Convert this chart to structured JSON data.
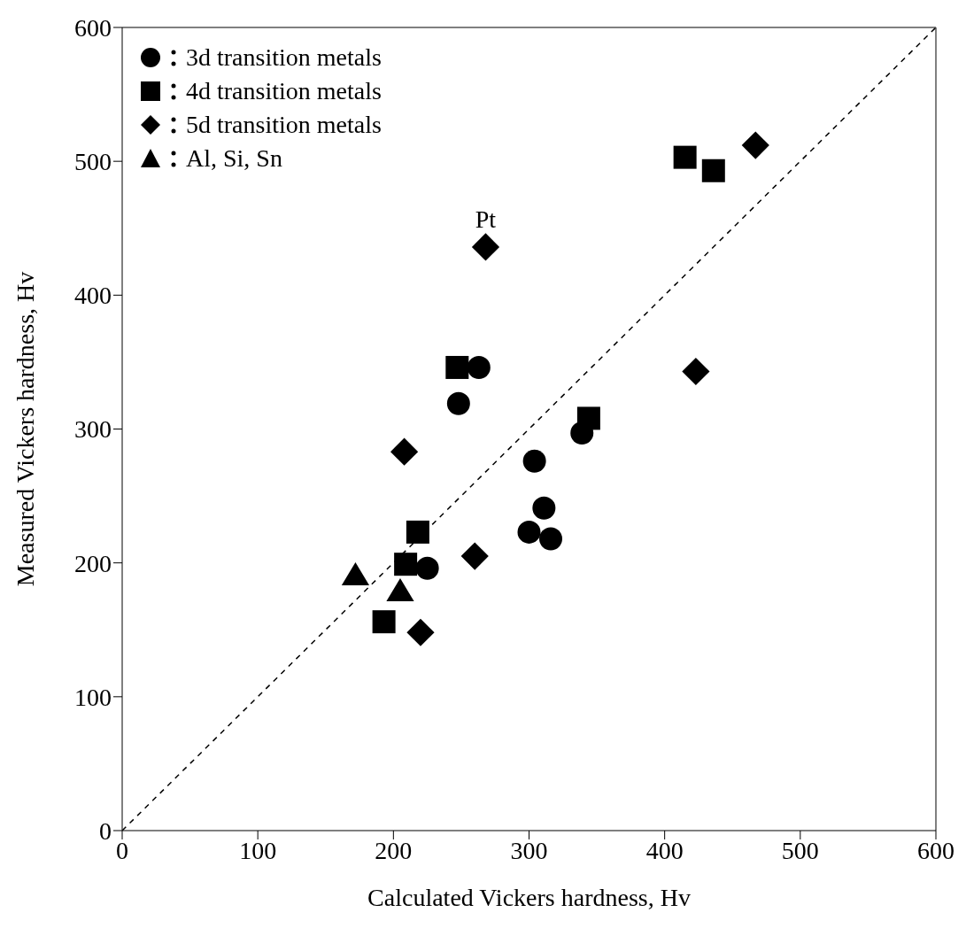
{
  "chart_data": {
    "type": "scatter",
    "xlabel": "Calculated Vickers hardness, Hv",
    "ylabel": "Measured Vickers hardness, Hv",
    "xlim": [
      0,
      600
    ],
    "ylim": [
      0,
      600
    ],
    "xticks": [
      0,
      100,
      200,
      300,
      400,
      500,
      600
    ],
    "yticks": [
      0,
      100,
      200,
      300,
      400,
      500,
      600
    ],
    "grid": false,
    "legend": "top left",
    "series": [
      {
        "name": "3d transition metals",
        "color": "#000000",
        "marker": "circle",
        "x": [
          263,
          248,
          339,
          304,
          311,
          300,
          316,
          225
        ],
        "values": [
          346,
          319,
          297,
          276,
          241,
          223,
          218,
          196
        ]
      },
      {
        "name": "4d transition metals",
        "color": "#000000",
        "marker": "square",
        "x": [
          247,
          344,
          218,
          209,
          193,
          415,
          436
        ],
        "values": [
          346,
          308,
          223,
          199,
          156,
          503,
          493
        ]
      },
      {
        "name": "5d transition metals",
        "color": "#000000",
        "marker": "diamond",
        "x": [
          268,
          467,
          423,
          208,
          260,
          220
        ],
        "values": [
          436,
          512,
          343,
          283,
          205,
          148
        ]
      },
      {
        "name": "Al, Si, Sn",
        "color": "#000000",
        "marker": "triangle",
        "x": [
          172,
          205
        ],
        "values": [
          191,
          179
        ]
      },
      {
        "type": "line",
        "color": "#000000",
        "line_style": "dashed",
        "marker": "none",
        "x": [
          0,
          600
        ],
        "values": [
          0,
          600
        ]
      }
    ],
    "annotations": [
      {
        "text": "Pt",
        "x": 268,
        "y": 436
      }
    ]
  }
}
